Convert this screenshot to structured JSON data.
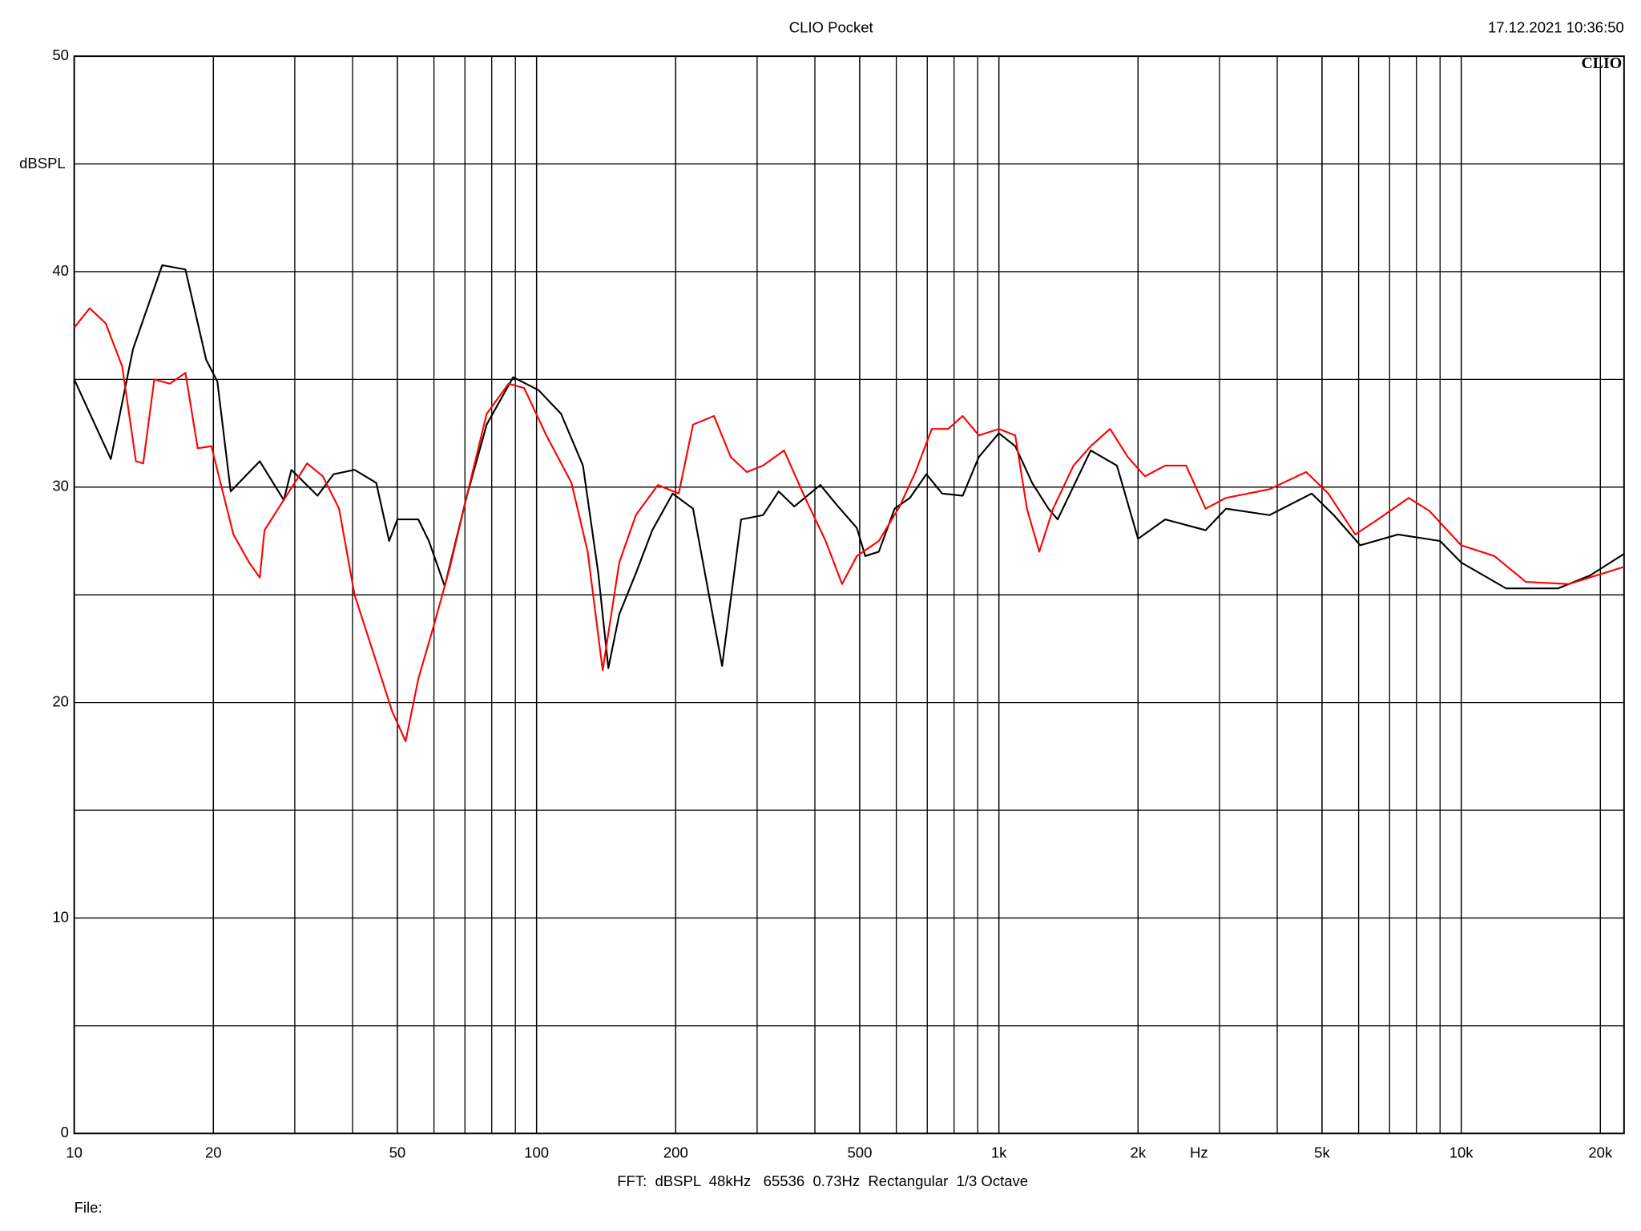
{
  "chart_data": {
    "type": "line",
    "title": "CLIO Pocket",
    "timestamp": "17.12.2021 10:36:50",
    "logo": "CLIO",
    "y_label": "dBSPL",
    "x_unit": "Hz",
    "footer": "FFT:  dBSPL  48kHz   65536  0.73Hz  Rectangular  1/3 Octave",
    "file_label": "File:",
    "xscale": "log",
    "grid": true,
    "xlim": [
      10,
      22500
    ],
    "ylim": [
      0,
      50
    ],
    "yticks": [
      0,
      10,
      20,
      30,
      40,
      50
    ],
    "xticks": [
      10,
      20,
      50,
      100,
      200,
      500,
      {
        "value": 1000,
        "label": "1k"
      },
      {
        "value": 2000,
        "label": "2k"
      },
      {
        "value": 5000,
        "label": "5k"
      },
      {
        "value": 10000,
        "label": "10k"
      },
      {
        "value": 20000,
        "label": "20k"
      }
    ],
    "series": [
      {
        "color": "#000000",
        "x": [
          10,
          12.0,
          13.4,
          15.5,
          17.4,
          19.3,
          20.4,
          21.8,
          25.2,
          28.4,
          29.5,
          33.6,
          36.4,
          40.4,
          45,
          48,
          50,
          55.5,
          58.5,
          63.3,
          70.5,
          78,
          89,
          101,
          113,
          126,
          136,
          143,
          151,
          164,
          178,
          197,
          218,
          236,
          252,
          277,
          309,
          334,
          361,
          411,
          445,
          493,
          514,
          550,
          595,
          642,
          697,
          754,
          835,
          905,
          1000,
          1085,
          1180,
          1280,
          1340,
          1580,
          1800,
          2000,
          2290,
          2800,
          3100,
          3850,
          4750,
          5300,
          6050,
          7300,
          9000,
          10000,
          12500,
          16200,
          19000,
          22500
        ],
        "values": [
          35.0,
          31.3,
          36.4,
          40.3,
          40.1,
          35.9,
          34.9,
          29.8,
          31.2,
          29.4,
          30.8,
          29.6,
          30.6,
          30.8,
          30.2,
          27.5,
          28.5,
          28.5,
          27.5,
          25.4,
          29.5,
          32.9,
          35.1,
          34.5,
          33.4,
          31.0,
          26.0,
          21.6,
          24.1,
          26.0,
          28.0,
          29.7,
          29.0,
          25.0,
          21.7,
          28.5,
          28.7,
          29.8,
          29.1,
          30.1,
          29.2,
          28.1,
          26.8,
          27.0,
          29.0,
          29.5,
          30.6,
          29.7,
          29.6,
          31.4,
          32.5,
          31.9,
          30.2,
          29.0,
          28.5,
          31.7,
          31.0,
          27.6,
          28.5,
          28.0,
          29.0,
          28.7,
          29.7,
          28.7,
          27.3,
          27.8,
          27.5,
          26.5,
          25.3,
          25.3,
          25.9,
          26.9
        ]
      },
      {
        "color": "#ff0000",
        "x": [
          10,
          10.8,
          11.7,
          12.7,
          13.6,
          14.1,
          14.9,
          16.1,
          17.4,
          18.5,
          19.8,
          22.1,
          23.9,
          25.2,
          25.8,
          28.0,
          31.9,
          34.5,
          37.4,
          40.4,
          45,
          48.7,
          52.1,
          55.5,
          60,
          65,
          70.5,
          78,
          87,
          94,
          105,
          119,
          129,
          139,
          151,
          164,
          183,
          203,
          218,
          242,
          263,
          285,
          309,
          343,
          381,
          422,
          458,
          493,
          550,
          610,
          660,
          716,
          777,
          835,
          905,
          1000,
          1085,
          1150,
          1223,
          1310,
          1450,
          1580,
          1740,
          1900,
          2070,
          2290,
          2540,
          2800,
          3100,
          3850,
          4620,
          5160,
          5900,
          6600,
          7700,
          8530,
          10000,
          11800,
          13800,
          17100,
          22500
        ],
        "values": [
          37.4,
          38.3,
          37.6,
          35.6,
          31.2,
          31.1,
          35.0,
          34.8,
          35.3,
          31.8,
          31.9,
          27.8,
          26.5,
          25.8,
          28.0,
          29.2,
          31.1,
          30.5,
          29.0,
          25.0,
          21.9,
          19.6,
          18.2,
          21.1,
          23.6,
          26.3,
          29.5,
          33.4,
          34.8,
          34.6,
          32.4,
          30.2,
          27.0,
          21.5,
          26.5,
          28.7,
          30.1,
          29.7,
          32.9,
          33.3,
          31.4,
          30.7,
          31.0,
          31.7,
          29.5,
          27.5,
          25.5,
          26.8,
          27.5,
          29.1,
          30.7,
          32.7,
          32.7,
          33.3,
          32.4,
          32.7,
          32.4,
          29.0,
          27.0,
          29.0,
          31.0,
          31.9,
          32.7,
          31.4,
          30.5,
          31.0,
          31.0,
          29.0,
          29.5,
          29.9,
          30.7,
          29.7,
          27.8,
          28.5,
          29.5,
          28.9,
          27.3,
          26.8,
          25.6,
          25.5,
          26.3
        ]
      }
    ]
  }
}
